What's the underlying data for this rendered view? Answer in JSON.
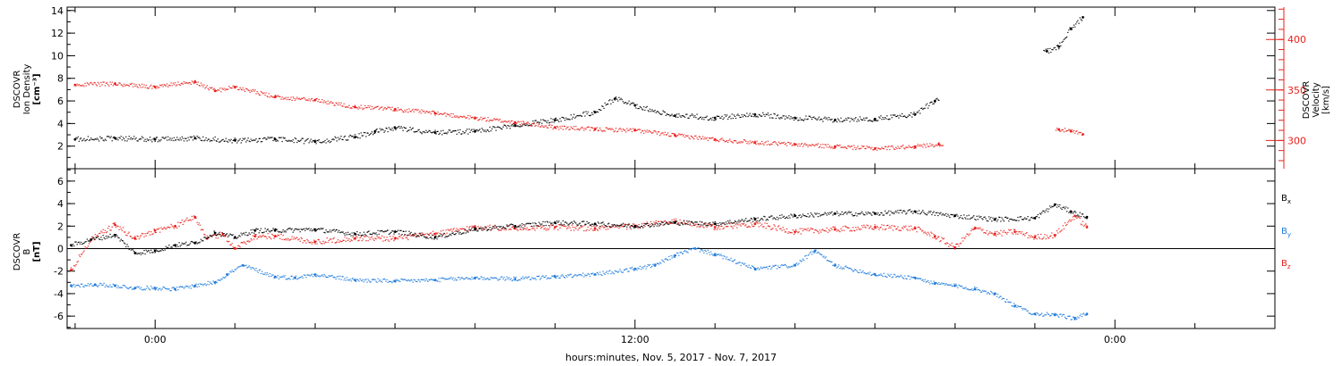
{
  "chart_data": [
    {
      "type": "scatter",
      "panel": "top",
      "left_ylabel": [
        "DSCOVR",
        "Ion Density",
        "[cm⁻³]"
      ],
      "right_ylabel": [
        "DSCOVR",
        "Velocity",
        "[km/s]"
      ],
      "left_yticks": [
        "2",
        "4",
        "6",
        "8",
        "10",
        "12",
        "14"
      ],
      "right_yticks": [
        "300",
        "350",
        "400"
      ],
      "left_ylim": [
        0,
        14.3
      ],
      "right_ylim": [
        272,
        432
      ],
      "colors": {
        "density": "#000000",
        "velocity": "#e8211c"
      },
      "series": [
        {
          "name": "Ion Density",
          "color": "#000000",
          "axis": "left",
          "x": [
            -2.0,
            -1.0,
            0.0,
            1.0,
            2.0,
            3.0,
            4.0,
            5.0,
            5.5,
            6.0,
            7.0,
            8.0,
            9.0,
            10.0,
            11.0,
            11.5,
            12.0,
            13.0,
            14.0,
            15.0,
            16.0,
            17.0,
            18.0,
            19.0,
            19.5,
            22.3,
            22.6,
            22.9,
            23.2
          ],
          "y": [
            2.6,
            2.7,
            2.6,
            2.7,
            2.5,
            2.6,
            2.4,
            2.8,
            3.3,
            3.6,
            3.2,
            3.3,
            3.8,
            4.3,
            5.0,
            6.2,
            5.6,
            4.7,
            4.5,
            4.8,
            4.5,
            4.3,
            4.4,
            4.8,
            6.0,
            10.4,
            10.8,
            12.4,
            13.4
          ]
        },
        {
          "name": "Velocity",
          "color": "#e8211c",
          "axis": "right",
          "x": [
            -2.0,
            -1.0,
            0.0,
            1.0,
            1.5,
            2.0,
            3.0,
            4.0,
            5.0,
            6.0,
            7.0,
            8.0,
            9.0,
            10.0,
            11.0,
            12.0,
            13.0,
            14.0,
            15.0,
            16.0,
            17.0,
            18.0,
            19.0,
            19.6,
            22.6,
            22.9,
            23.2
          ],
          "y": [
            355,
            356,
            353,
            358,
            349,
            353,
            343,
            340,
            333,
            331,
            327,
            322,
            318,
            313,
            311,
            310,
            305,
            301,
            298,
            296,
            294,
            292,
            294,
            296,
            311,
            309,
            306
          ]
        }
      ]
    },
    {
      "type": "scatter",
      "panel": "bottom",
      "left_ylabel": [
        "DSCOVR",
        "B",
        "[nT]"
      ],
      "left_yticks": [
        "-6",
        "-4",
        "-2",
        "0",
        "2",
        "4",
        "6"
      ],
      "ylim": [
        -7.1,
        7.1
      ],
      "series_labels": [
        {
          "main": "B",
          "sub": "x"
        },
        {
          "main": "B",
          "sub": "y"
        },
        {
          "main": "B",
          "sub": "z"
        }
      ],
      "colors": {
        "bx": "#000000",
        "by": "#1e7bdc",
        "bz": "#e8211c"
      },
      "series": [
        {
          "name": "Bx",
          "color": "#000000",
          "x": [
            -2.1,
            -1.6,
            -1.0,
            -0.5,
            0.0,
            0.5,
            1.0,
            1.5,
            2.0,
            2.5,
            3.0,
            4.0,
            5.0,
            6.0,
            7.0,
            8.0,
            9.0,
            10.0,
            11.0,
            12.0,
            13.0,
            14.0,
            15.0,
            16.0,
            17.0,
            18.0,
            19.0,
            20.0,
            21.0,
            22.0,
            22.5,
            22.9,
            23.3
          ],
          "y": [
            0.3,
            0.8,
            1.2,
            -0.4,
            -0.2,
            0.3,
            0.5,
            1.4,
            1.0,
            1.6,
            1.6,
            1.7,
            1.3,
            1.5,
            1.0,
            1.7,
            2.0,
            2.3,
            2.2,
            2.0,
            2.3,
            2.2,
            2.6,
            2.9,
            3.1,
            3.1,
            3.3,
            2.9,
            2.6,
            2.7,
            3.9,
            3.3,
            2.8
          ]
        },
        {
          "name": "By",
          "color": "#1e7bdc",
          "x": [
            -2.1,
            -1.5,
            -1.0,
            -0.5,
            0.0,
            0.5,
            1.0,
            1.5,
            1.8,
            2.2,
            3.0,
            3.5,
            4.0,
            5.0,
            6.0,
            7.0,
            8.0,
            9.0,
            10.0,
            11.0,
            12.0,
            12.5,
            13.0,
            13.5,
            14.0,
            15.0,
            16.0,
            16.5,
            17.0,
            18.0,
            19.0,
            19.5,
            20.0,
            20.5,
            21.0,
            21.5,
            22.0,
            22.5,
            23.0,
            23.3
          ],
          "y": [
            -3.3,
            -3.2,
            -3.3,
            -3.5,
            -3.5,
            -3.6,
            -3.3,
            -3.0,
            -2.3,
            -1.5,
            -2.5,
            -2.6,
            -2.3,
            -2.8,
            -2.9,
            -2.8,
            -2.6,
            -2.7,
            -2.5,
            -2.3,
            -1.8,
            -1.5,
            -0.6,
            0.0,
            -0.5,
            -1.8,
            -1.5,
            -0.2,
            -1.5,
            -2.3,
            -2.6,
            -3.1,
            -3.3,
            -3.6,
            -4.0,
            -5.1,
            -5.8,
            -5.9,
            -6.2,
            -5.8
          ]
        },
        {
          "name": "Bz",
          "color": "#e8211c",
          "x": [
            -2.1,
            -1.6,
            -1.0,
            -0.5,
            0.0,
            0.5,
            1.0,
            1.3,
            1.7,
            2.0,
            2.5,
            3.0,
            4.0,
            5.0,
            6.0,
            7.0,
            8.0,
            9.0,
            10.0,
            11.0,
            12.0,
            13.0,
            14.0,
            15.0,
            16.0,
            17.0,
            18.0,
            19.0,
            19.5,
            20.0,
            20.5,
            21.0,
            21.5,
            22.0,
            22.5,
            23.0,
            23.3
          ],
          "y": [
            -1.9,
            0.8,
            2.1,
            0.9,
            1.6,
            2.0,
            2.8,
            0.9,
            1.3,
            0.0,
            1.1,
            1.1,
            0.6,
            0.9,
            0.9,
            1.3,
            1.9,
            1.8,
            1.9,
            1.8,
            2.0,
            2.4,
            1.9,
            2.2,
            1.5,
            1.7,
            1.9,
            1.8,
            1.1,
            0.1,
            1.8,
            1.3,
            1.5,
            1.0,
            1.2,
            2.9,
            1.9
          ]
        }
      ]
    }
  ],
  "x_axis": {
    "label": "hours:minutes, Nov.  5, 2017 - Nov.  7, 2017",
    "ticks": [
      {
        "label": "0:00",
        "hour": 0
      },
      {
        "label": "12:00",
        "hour": 12
      },
      {
        "label": "0:00",
        "hour": 24
      }
    ],
    "xlim_hours": [
      -2.2,
      28.0
    ],
    "minor_tick_step_hours": 2
  }
}
